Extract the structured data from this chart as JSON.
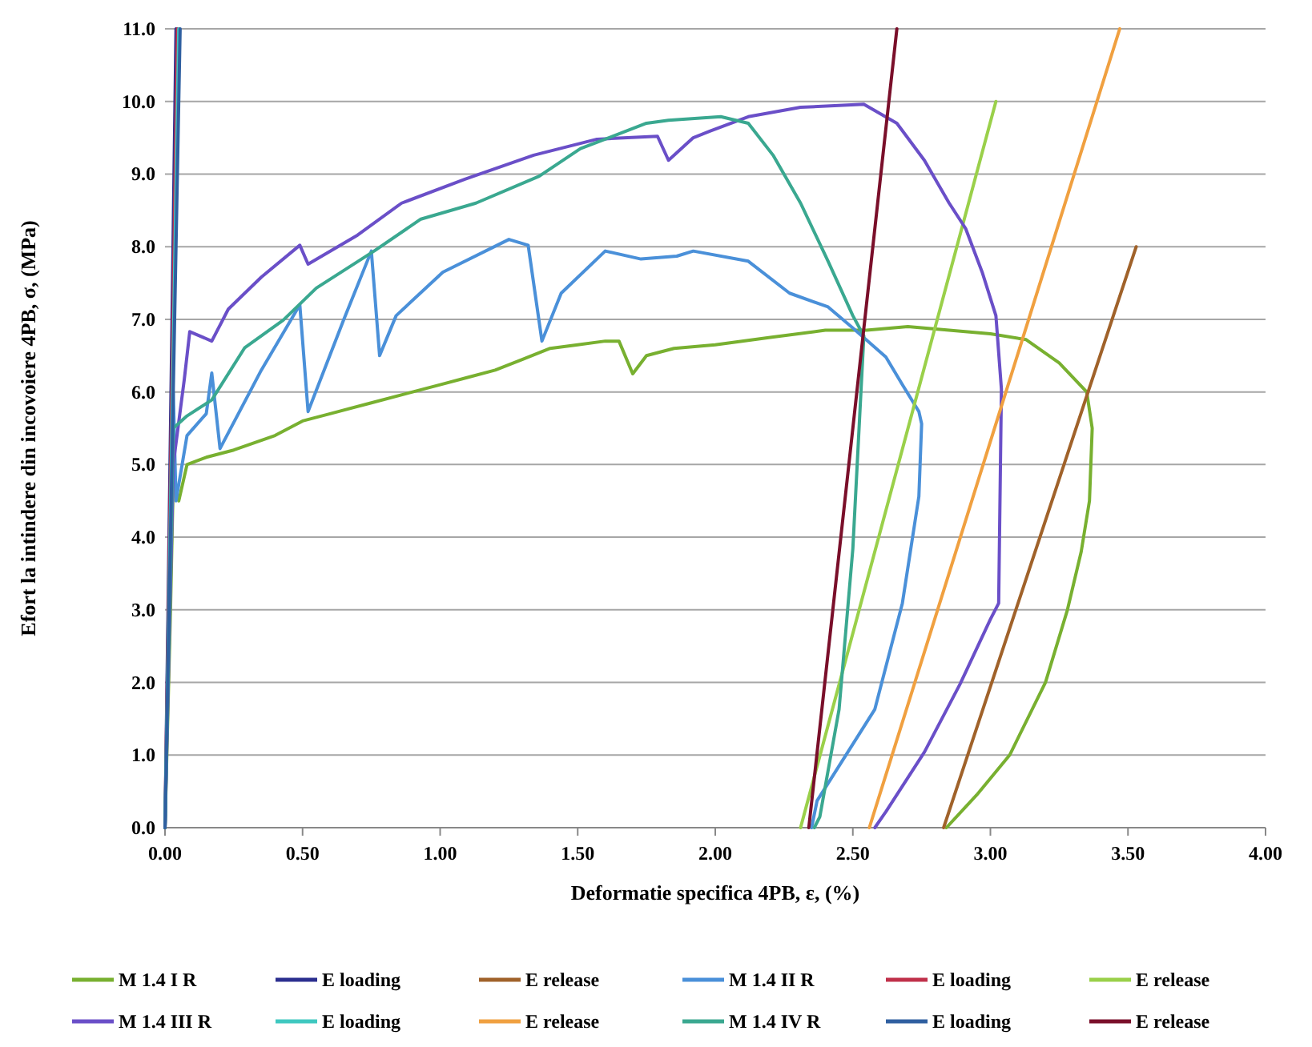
{
  "chart_data": {
    "type": "line",
    "xlabel": "Deformatie specifica 4PB, ε, (%)",
    "ylabel": "Efort la intindere din incovoiere 4PB, σ, (MPa)",
    "xlim": [
      0,
      4
    ],
    "ylim": [
      0,
      11
    ],
    "xticks": [
      {
        "value": 0,
        "label": "0.00"
      },
      {
        "value": 0.5,
        "label": "0.50"
      },
      {
        "value": 1,
        "label": "1.00"
      },
      {
        "value": 1.5,
        "label": "1.50"
      },
      {
        "value": 2,
        "label": "2.00"
      },
      {
        "value": 2.5,
        "label": "2.50"
      },
      {
        "value": 3,
        "label": "3.00"
      },
      {
        "value": 3.5,
        "label": "3.50"
      },
      {
        "value": 4,
        "label": "4.00"
      }
    ],
    "yticks": [
      {
        "value": 0,
        "label": "0.0"
      },
      {
        "value": 1,
        "label": "1.0"
      },
      {
        "value": 2,
        "label": "2.0"
      },
      {
        "value": 3,
        "label": "3.0"
      },
      {
        "value": 4,
        "label": "4.0"
      },
      {
        "value": 5,
        "label": "5.0"
      },
      {
        "value": 6,
        "label": "6.0"
      },
      {
        "value": 7,
        "label": "7.0"
      },
      {
        "value": 8,
        "label": "8.0"
      },
      {
        "value": 9,
        "label": "9.0"
      },
      {
        "value": 10,
        "label": "10.0"
      },
      {
        "value": 11,
        "label": "11.0"
      }
    ],
    "grid": "y",
    "legend": "bottom",
    "marker": "none",
    "line_style": "solid",
    "series": [
      {
        "name": "M 1.4 I R",
        "color": "#78b030",
        "x": [
          0,
          0.02,
          0.03,
          0.05,
          0.08,
          0.15,
          0.25,
          0.4,
          0.5,
          0.6,
          0.75,
          0.9,
          1.0,
          1.1,
          1.2,
          1.3,
          1.4,
          1.5,
          1.6,
          1.65,
          1.7,
          1.75,
          1.85,
          2.0,
          2.2,
          2.4,
          2.55,
          2.7,
          2.85,
          3.0,
          3.13,
          3.25,
          3.35,
          3.37,
          3.36,
          3.33,
          3.28,
          3.2,
          3.07,
          2.95,
          2.84
        ],
        "values": [
          0,
          3.0,
          4.8,
          4.5,
          5.0,
          5.1,
          5.2,
          5.4,
          5.6,
          5.7,
          5.85,
          6.0,
          6.1,
          6.2,
          6.3,
          6.45,
          6.6,
          6.65,
          6.7,
          6.7,
          6.25,
          6.5,
          6.6,
          6.65,
          6.75,
          6.85,
          6.85,
          6.9,
          6.85,
          6.8,
          6.72,
          6.4,
          6.0,
          5.5,
          4.5,
          3.8,
          3.0,
          2.0,
          1.0,
          0.45,
          0
        ]
      },
      {
        "name": "E loading",
        "color": "#2b2f8f",
        "x": [
          0,
          0.04
        ],
        "values": [
          0,
          11
        ]
      },
      {
        "name": "E release",
        "color": "#a0622a",
        "x": [
          2.83,
          3.53
        ],
        "values": [
          0,
          8.0
        ]
      },
      {
        "name": "M 1.4 II R",
        "color": "#4a90d9",
        "x": [
          0,
          0.03,
          0.04,
          0.08,
          0.15,
          0.17,
          0.2,
          0.35,
          0.49,
          0.52,
          0.65,
          0.75,
          0.78,
          0.84,
          1.01,
          1.25,
          1.32,
          1.37,
          1.44,
          1.6,
          1.73,
          1.86,
          1.92,
          2.12,
          2.27,
          2.41,
          2.5,
          2.62,
          2.68,
          2.74,
          2.75,
          2.74,
          2.68,
          2.58,
          2.37,
          2.35
        ],
        "values": [
          0,
          6.0,
          4.5,
          5.4,
          5.7,
          6.26,
          5.22,
          6.3,
          7.2,
          5.73,
          7.0,
          7.94,
          6.5,
          7.05,
          7.65,
          8.1,
          8.02,
          6.7,
          7.36,
          7.94,
          7.83,
          7.87,
          7.94,
          7.8,
          7.36,
          7.17,
          6.88,
          6.48,
          6.1,
          5.73,
          5.56,
          4.56,
          3.09,
          1.63,
          0.37,
          0
        ]
      },
      {
        "name": "E loading",
        "color": "#c0304a",
        "x": [
          0,
          0.045
        ],
        "values": [
          0,
          11
        ]
      },
      {
        "name": "E release",
        "color": "#9ad04a",
        "x": [
          2.31,
          3.02
        ],
        "values": [
          0,
          10.0
        ]
      },
      {
        "name": "M 1.4 III R",
        "color": "#6a4fc8",
        "x": [
          0,
          0.03,
          0.07,
          0.09,
          0.17,
          0.23,
          0.35,
          0.49,
          0.52,
          0.7,
          0.86,
          1.09,
          1.34,
          1.57,
          1.79,
          1.83,
          1.92,
          1.98,
          2.12,
          2.31,
          2.54,
          2.66,
          2.76,
          2.85,
          2.91,
          2.97,
          3.02,
          3.04,
          3.03,
          3.0,
          2.89,
          2.76,
          2.62,
          2.58
        ],
        "values": [
          0,
          5.0,
          6.17,
          6.83,
          6.7,
          7.14,
          7.58,
          8.02,
          7.76,
          8.16,
          8.6,
          8.93,
          9.26,
          9.48,
          9.52,
          9.19,
          9.5,
          9.59,
          9.79,
          9.92,
          9.96,
          9.7,
          9.19,
          8.6,
          8.25,
          7.65,
          7.05,
          6.04,
          3.09,
          2.87,
          1.98,
          1.04,
          0.22,
          0
        ]
      },
      {
        "name": "E loading",
        "color": "#3fc8c0",
        "x": [
          0,
          0.05
        ],
        "values": [
          0,
          11
        ]
      },
      {
        "name": "E release",
        "color": "#f0a040",
        "x": [
          2.56,
          3.47
        ],
        "values": [
          0,
          11.0
        ]
      },
      {
        "name": "M 1.4 IV R",
        "color": "#3aa890",
        "x": [
          0,
          0.03,
          0.08,
          0.17,
          0.29,
          0.43,
          0.55,
          0.76,
          0.93,
          1.13,
          1.36,
          1.51,
          1.75,
          1.83,
          2.02,
          2.12,
          2.21,
          2.31,
          2.41,
          2.5,
          2.54,
          2.53,
          2.5,
          2.45,
          2.38,
          2.36
        ],
        "values": [
          0,
          5.5,
          5.67,
          5.89,
          6.61,
          6.99,
          7.43,
          7.94,
          8.38,
          8.6,
          8.97,
          9.35,
          9.7,
          9.74,
          9.79,
          9.7,
          9.26,
          8.6,
          7.8,
          7.05,
          6.77,
          6.04,
          3.84,
          1.63,
          0.15,
          0
        ]
      },
      {
        "name": "E loading",
        "color": "#2f5fa0",
        "x": [
          0,
          0.055
        ],
        "values": [
          0,
          11
        ]
      },
      {
        "name": "E release",
        "color": "#7a0f2a",
        "x": [
          2.34,
          2.66
        ],
        "values": [
          0,
          11.0
        ]
      }
    ]
  }
}
